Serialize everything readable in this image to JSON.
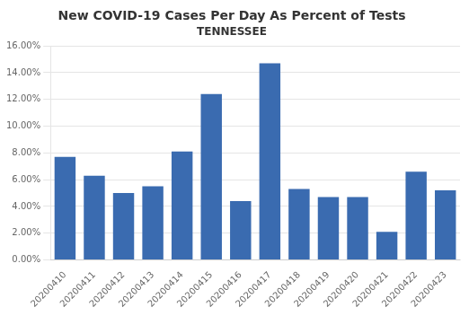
{
  "chart_data": {
    "type": "bar",
    "title": "New COVID-19 Cases Per Day As Percent of Tests",
    "subtitle": "TENNESSEE",
    "categories": [
      "20200410",
      "20200411",
      "20200412",
      "20200413",
      "20200414",
      "20200415",
      "20200416",
      "20200417",
      "20200418",
      "20200419",
      "20200420",
      "20200421",
      "20200422",
      "20200423"
    ],
    "values": [
      0.077,
      0.063,
      0.05,
      0.055,
      0.081,
      0.124,
      0.044,
      0.147,
      0.053,
      0.047,
      0.047,
      0.021,
      0.066,
      0.052
    ],
    "color": "#3A6BB0",
    "ylim": [
      0,
      0.16
    ],
    "yticks": [
      {
        "value": 0.0,
        "label": "0.00%"
      },
      {
        "value": 0.02,
        "label": "2.00%"
      },
      {
        "value": 0.04,
        "label": "4.00%"
      },
      {
        "value": 0.06,
        "label": "6.00%"
      },
      {
        "value": 0.08,
        "label": "8.00%"
      },
      {
        "value": 0.1,
        "label": "10.00%"
      },
      {
        "value": 0.12,
        "label": "12.00%"
      },
      {
        "value": 0.14,
        "label": "14.00%"
      },
      {
        "value": 0.16,
        "label": "16.00%"
      }
    ],
    "grid": true
  }
}
